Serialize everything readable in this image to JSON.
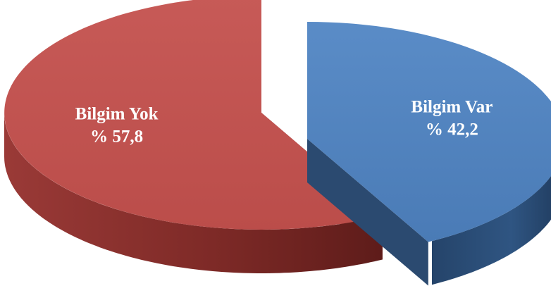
{
  "chart_data": {
    "type": "pie",
    "style": "3d-exploded",
    "title": "",
    "legend": "none",
    "slices": [
      {
        "label": "Bilgim Yok",
        "value": 57.8,
        "value_text": "% 57,8",
        "color": "#c0504d",
        "side_color": "#8c2f2c"
      },
      {
        "label": "Bilgim Var",
        "value": 42.2,
        "value_text": "% 42,2",
        "color": "#4f81bd",
        "side_color": "#2b4a70"
      }
    ]
  }
}
